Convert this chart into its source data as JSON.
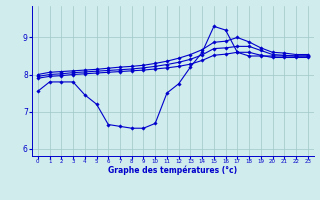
{
  "background_color": "#d0ecec",
  "line_color": "#0000cc",
  "grid_color": "#a0c8c8",
  "xlabel": "Graphe des températures (°c)",
  "xlim": [
    -0.5,
    23.5
  ],
  "ylim": [
    5.8,
    9.85
  ],
  "yticks": [
    6,
    7,
    8,
    9
  ],
  "xticks": [
    0,
    1,
    2,
    3,
    4,
    5,
    6,
    7,
    8,
    9,
    10,
    11,
    12,
    13,
    14,
    15,
    16,
    17,
    18,
    19,
    20,
    21,
    22,
    23
  ],
  "series": [
    {
      "x": [
        0,
        1,
        2,
        3,
        4,
        5,
        6,
        7,
        8,
        9,
        10,
        11,
        12,
        13,
        14,
        15,
        16,
        17,
        18,
        19,
        20,
        21,
        22,
        23
      ],
      "y": [
        7.55,
        7.8,
        7.8,
        7.8,
        7.45,
        7.2,
        6.65,
        6.6,
        6.55,
        6.55,
        6.68,
        7.5,
        7.75,
        8.2,
        8.6,
        9.3,
        9.2,
        8.6,
        8.5,
        8.5,
        8.5,
        8.5,
        8.5,
        8.5
      ]
    },
    {
      "x": [
        0,
        1,
        2,
        3,
        4,
        5,
        6,
        7,
        8,
        9,
        10,
        11,
        12,
        13,
        14,
        15,
        16,
        17,
        18,
        19,
        20,
        21,
        22,
        23
      ],
      "y": [
        7.9,
        7.95,
        7.97,
        8.0,
        8.02,
        8.04,
        8.06,
        8.08,
        8.1,
        8.12,
        8.15,
        8.18,
        8.22,
        8.28,
        8.38,
        8.52,
        8.55,
        8.6,
        8.6,
        8.52,
        8.46,
        8.46,
        8.46,
        8.46
      ]
    },
    {
      "x": [
        0,
        1,
        2,
        3,
        4,
        5,
        6,
        7,
        8,
        9,
        10,
        11,
        12,
        13,
        14,
        15,
        16,
        17,
        18,
        19,
        20,
        21,
        22,
        23
      ],
      "y": [
        7.95,
        8.0,
        8.02,
        8.05,
        8.07,
        8.09,
        8.11,
        8.13,
        8.15,
        8.18,
        8.22,
        8.27,
        8.33,
        8.41,
        8.53,
        8.7,
        8.72,
        8.76,
        8.76,
        8.65,
        8.54,
        8.52,
        8.5,
        8.5
      ]
    },
    {
      "x": [
        0,
        1,
        2,
        3,
        4,
        5,
        6,
        7,
        8,
        9,
        10,
        11,
        12,
        13,
        14,
        15,
        16,
        17,
        18,
        19,
        20,
        21,
        22,
        23
      ],
      "y": [
        8.0,
        8.06,
        8.08,
        8.1,
        8.12,
        8.14,
        8.17,
        8.2,
        8.22,
        8.25,
        8.3,
        8.36,
        8.44,
        8.54,
        8.67,
        8.87,
        8.9,
        9.0,
        8.88,
        8.72,
        8.6,
        8.58,
        8.54,
        8.54
      ]
    }
  ]
}
